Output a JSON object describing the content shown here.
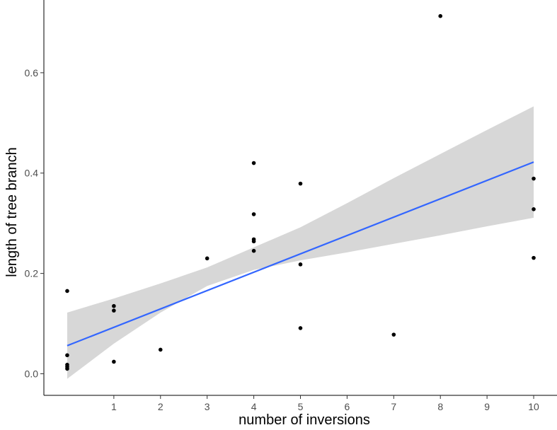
{
  "chart_data": {
    "type": "scatter",
    "xlabel": "number of inversions",
    "ylabel": "length of tree branch",
    "xlim": [
      -0.5,
      10.5
    ],
    "ylim": [
      -0.043,
      0.745
    ],
    "x_ticks": [
      1,
      2,
      3,
      4,
      5,
      6,
      7,
      8,
      9,
      10
    ],
    "y_ticks": [
      0.0,
      0.2,
      0.4,
      0.6
    ],
    "y_tick_labels": [
      "0.0",
      "0.2",
      "0.4",
      "0.6"
    ],
    "grid": false,
    "legend": "none",
    "points": [
      {
        "x": 0,
        "y": 0.165
      },
      {
        "x": 0,
        "y": 0.037
      },
      {
        "x": 0,
        "y": 0.018
      },
      {
        "x": 0,
        "y": 0.014
      },
      {
        "x": 0,
        "y": 0.01
      },
      {
        "x": 1,
        "y": 0.135
      },
      {
        "x": 1,
        "y": 0.126
      },
      {
        "x": 1,
        "y": 0.024
      },
      {
        "x": 2,
        "y": 0.048
      },
      {
        "x": 3,
        "y": 0.23
      },
      {
        "x": 4,
        "y": 0.42
      },
      {
        "x": 4,
        "y": 0.318
      },
      {
        "x": 4,
        "y": 0.268
      },
      {
        "x": 4,
        "y": 0.264
      },
      {
        "x": 4,
        "y": 0.245
      },
      {
        "x": 5,
        "y": 0.379
      },
      {
        "x": 5,
        "y": 0.218
      },
      {
        "x": 5,
        "y": 0.091
      },
      {
        "x": 7,
        "y": 0.078
      },
      {
        "x": 8,
        "y": 0.713
      },
      {
        "x": 10,
        "y": 0.389
      },
      {
        "x": 10,
        "y": 0.328
      },
      {
        "x": 10,
        "y": 0.231
      }
    ],
    "fit_line": {
      "x": [
        0,
        10
      ],
      "y": [
        0.056,
        0.422
      ]
    },
    "confidence_band": {
      "x": [
        0,
        1,
        2,
        3,
        4,
        5,
        6,
        7,
        8,
        9,
        10
      ],
      "lower": [
        -0.01,
        0.06,
        0.122,
        0.175,
        0.207,
        0.226,
        0.242,
        0.259,
        0.276,
        0.294,
        0.311
      ],
      "upper": [
        0.122,
        0.15,
        0.18,
        0.212,
        0.252,
        0.292,
        0.34,
        0.39,
        0.438,
        0.486,
        0.533
      ]
    },
    "colors": {
      "points": "#000000",
      "fit_line": "#3366ff",
      "band": "#d3d3d3",
      "axis": "#000000"
    }
  }
}
